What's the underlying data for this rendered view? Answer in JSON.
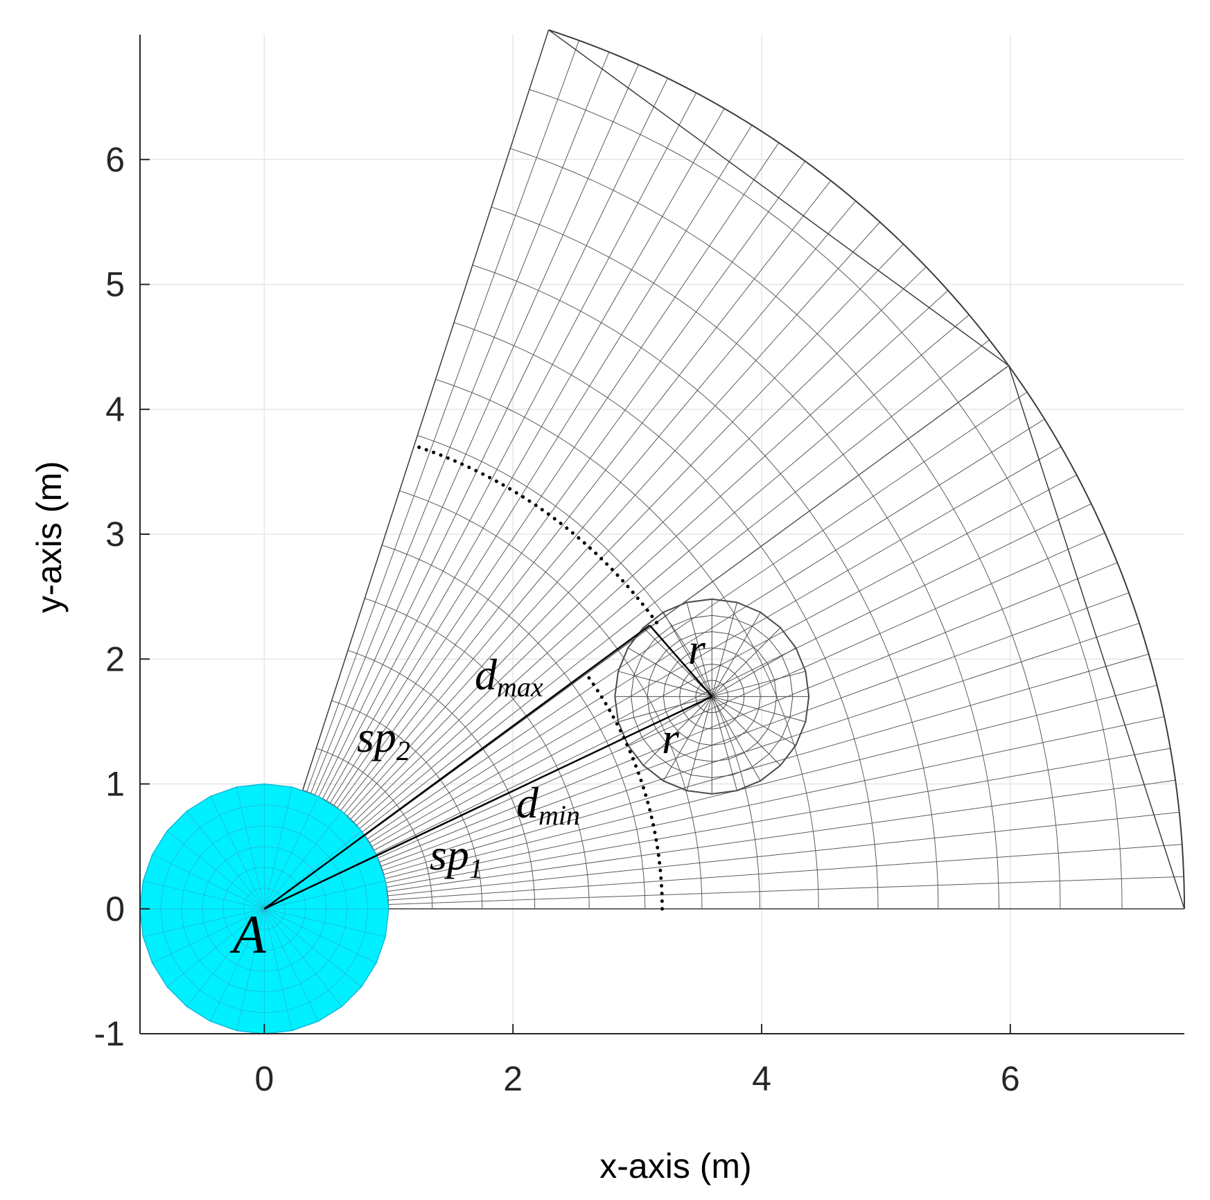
{
  "chart_data": {
    "type": "diagram",
    "xlabel": "x-axis (m)",
    "ylabel": "y-axis (m)",
    "xlim": [
      -1,
      7.4
    ],
    "ylim": [
      -1,
      7
    ],
    "xticks": [
      0,
      2,
      4,
      6
    ],
    "yticks": [
      -1,
      0,
      1,
      2,
      3,
      4,
      5,
      6
    ],
    "xtick_labels": [
      "0",
      "2",
      "4",
      "6"
    ],
    "ytick_labels": [
      "-1",
      "0",
      "1",
      "2",
      "3",
      "4",
      "5",
      "6"
    ],
    "grid": true,
    "robot": {
      "center": [
        0,
        0
      ],
      "radius": 1,
      "color": "#00f0ff"
    },
    "obstacle": {
      "center": [
        3.6,
        1.7
      ],
      "radius": 0.78
    },
    "sector": {
      "inner_radius": 1,
      "outer_radius": 7.4,
      "start_angle_deg": 0,
      "end_angle_deg": 72
    },
    "arc_dmin_radius": 3.2,
    "arc_dmax_radius": 3.9,
    "tangent_point": [
      3.1,
      2.27
    ],
    "labels": {
      "A": "A",
      "d": "d",
      "max": "max",
      "min": "min",
      "sp": "sp",
      "one": "1",
      "two": "2",
      "r": "r"
    }
  }
}
